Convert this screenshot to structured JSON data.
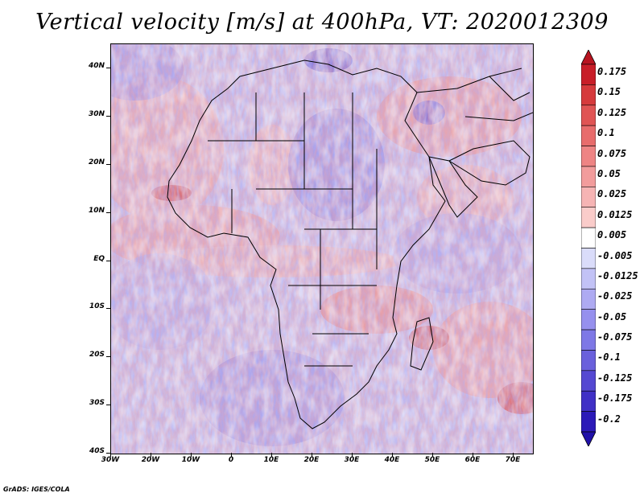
{
  "title": "Vertical velocity [m/s] at 400hPa, VT: 2020012309",
  "lat_labels": [
    "40N",
    "30N",
    "20N",
    "10N",
    "EQ",
    "10S",
    "20S",
    "30S",
    "40S"
  ],
  "lon_labels": [
    "30W",
    "20W",
    "10W",
    "0",
    "10E",
    "20E",
    "30E",
    "40E",
    "50E",
    "60E",
    "70E"
  ],
  "colorbar": {
    "labels": [
      "0.175",
      "0.15",
      "0.125",
      "0.1",
      "0.075",
      "0.05",
      "0.025",
      "0.0125",
      "0.005",
      "-0.005",
      "-0.0125",
      "-0.025",
      "-0.05",
      "-0.075",
      "-0.1",
      "-0.125",
      "-0.175",
      "-0.2"
    ],
    "colors": [
      "#c81e28",
      "#d63a3c",
      "#e05454",
      "#e86c6c",
      "#ee8484",
      "#f29c9c",
      "#f6b4b4",
      "#faccca",
      "#ffffff",
      "#dadcfa",
      "#c2c2f6",
      "#aeaaf2",
      "#9690ee",
      "#7e78e6",
      "#6a60dc",
      "#5548d2",
      "#4030c6",
      "#2c1ab8"
    ],
    "top_color": "#b81420",
    "bottom_color": "#2010a8"
  },
  "footer": "GrADS: IGES/COLA"
}
